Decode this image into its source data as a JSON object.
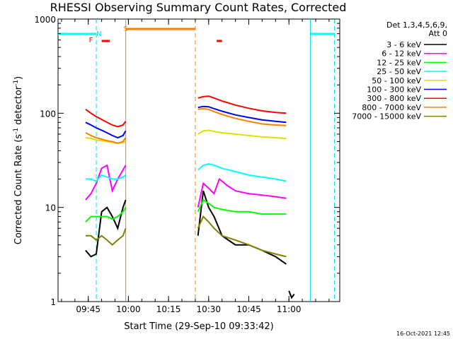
{
  "chart_data": {
    "type": "line",
    "title": "RHESSI Observing Summary Count Rates, Corrected",
    "xlabel": "Start Time (29-Sep-10 09:33:42)",
    "ylabel": "Corrected Count Rate (s⁻¹ detector⁻¹)",
    "ylabel_main": "Corrected Count Rate (s",
    "ylabel_mid": " detector",
    "ylabel_end": ")",
    "ylabel_sup": "-1",
    "yscale": "log",
    "ylim": [
      1,
      1000
    ],
    "xlim": [
      "09:33:42",
      "11:19:00"
    ],
    "x_ticks": [
      "09:45",
      "10:00",
      "10:15",
      "10:30",
      "10:45",
      "11:00"
    ],
    "y_ticks": [
      "1",
      "10",
      "100",
      "1000"
    ],
    "legend_header": [
      "Det 1,3,4,5,6,9,",
      "Att 0"
    ],
    "legend_position": "right",
    "timestamp": "16-Oct-2021 12:45",
    "flags": [
      {
        "label": "S",
        "color": "#ff8000",
        "time": "09:59",
        "start": "09:59",
        "end": "10:25"
      },
      {
        "label": "F",
        "color": "#ff0000",
        "time": "09:46",
        "start": "09:50",
        "end": "09:53"
      },
      {
        "label": "N",
        "color": "#00e0e0",
        "time": "09:49",
        "start": "",
        "end": ""
      },
      {
        "label": "",
        "color": "#ff0000",
        "time": "",
        "start": "10:33",
        "end": "10:35"
      },
      {
        "label": "",
        "color": "#00ffff",
        "time": "",
        "start": "09:33:42",
        "end": "09:48"
      },
      {
        "label": "",
        "color": "#00ffff",
        "time": "",
        "start": "11:08",
        "end": "11:17"
      }
    ],
    "vlines": [
      {
        "time": "09:48",
        "color": "#00e0e0",
        "style": "dashed"
      },
      {
        "time": "09:59",
        "color": "#ff8000",
        "style": "solid"
      },
      {
        "time": "10:25",
        "color": "#ff8000",
        "style": "dashed"
      },
      {
        "time": "11:08",
        "color": "#00e0e0",
        "style": "solid"
      },
      {
        "time": "11:17",
        "color": "#00e0e0",
        "style": "dashed"
      }
    ],
    "series": [
      {
        "name": "3 - 6 keV",
        "color": "#000000",
        "segments": [
          {
            "x": [
              "09:44",
              "09:46",
              "09:48",
              "09:50",
              "09:52",
              "09:54",
              "09:56",
              "09:58",
              "09:59"
            ],
            "y": [
              3.5,
              3,
              3.2,
              9,
              10,
              8,
              6,
              10,
              12
            ]
          },
          {
            "x": [
              "10:26",
              "10:28",
              "10:30",
              "10:32",
              "10:35",
              "10:40",
              "10:45",
              "10:50",
              "10:55",
              "10:59"
            ],
            "y": [
              5,
              15,
              10,
              8,
              5,
              4,
              4,
              3.5,
              3,
              2.5
            ]
          },
          {
            "x": [
              "11:00",
              "11:01",
              "11:02"
            ],
            "y": [
              1.3,
              1.1,
              1.2
            ]
          }
        ]
      },
      {
        "name": "6 - 12 keV",
        "color": "#ff00ff",
        "segments": [
          {
            "x": [
              "09:44",
              "09:46",
              "09:48",
              "09:50",
              "09:52",
              "09:54",
              "09:56",
              "09:58",
              "09:59"
            ],
            "y": [
              12,
              14,
              18,
              26,
              28,
              15,
              20,
              25,
              28
            ]
          },
          {
            "x": [
              "10:26",
              "10:28",
              "10:30",
              "10:32",
              "10:34",
              "10:37",
              "10:40",
              "10:45",
              "10:50",
              "10:55",
              "10:59"
            ],
            "y": [
              10,
              18,
              16,
              14,
              20,
              17,
              15,
              14,
              13.5,
              13,
              12.5
            ]
          }
        ]
      },
      {
        "name": "12 - 25 keV",
        "color": "#00ff00",
        "segments": [
          {
            "x": [
              "09:44",
              "09:46",
              "09:48",
              "09:50",
              "09:52",
              "09:54",
              "09:56",
              "09:58",
              "09:59"
            ],
            "y": [
              7,
              8,
              8,
              8,
              8,
              7.5,
              8,
              9,
              10
            ]
          },
          {
            "x": [
              "10:26",
              "10:28",
              "10:30",
              "10:32",
              "10:35",
              "10:40",
              "10:45",
              "10:50",
              "10:55",
              "10:59"
            ],
            "y": [
              9,
              12,
              11,
              10,
              9.5,
              9,
              9,
              8.5,
              8.5,
              8.5
            ]
          }
        ]
      },
      {
        "name": "25 - 50 keV",
        "color": "#00ffff",
        "segments": [
          {
            "x": [
              "09:44",
              "09:46",
              "09:48",
              "09:50",
              "09:52",
              "09:54",
              "09:56",
              "09:58",
              "09:59"
            ],
            "y": [
              20,
              20,
              19,
              22,
              21,
              20,
              20,
              21,
              22
            ]
          },
          {
            "x": [
              "10:26",
              "10:28",
              "10:30",
              "10:32",
              "10:35",
              "10:40",
              "10:45",
              "10:50",
              "10:55",
              "10:59"
            ],
            "y": [
              25,
              28,
              29,
              28,
              26,
              24,
              22,
              21,
              20,
              19
            ]
          }
        ]
      },
      {
        "name": "50 - 100 keV",
        "color": "#e0e000",
        "segments": [
          {
            "x": [
              "09:44",
              "09:46",
              "09:48",
              "09:50",
              "09:52",
              "09:54",
              "09:56",
              "09:58",
              "09:59"
            ],
            "y": [
              55,
              54,
              52,
              51,
              50,
              49,
              48,
              49,
              50
            ]
          },
          {
            "x": [
              "10:26",
              "10:28",
              "10:30",
              "10:32",
              "10:35",
              "10:40",
              "10:45",
              "10:50",
              "10:55",
              "10:59"
            ],
            "y": [
              60,
              65,
              66,
              64,
              62,
              60,
              58,
              56,
              55,
              54
            ]
          }
        ]
      },
      {
        "name": "100 - 300 keV",
        "color": "#0000ff",
        "segments": [
          {
            "x": [
              "09:44",
              "09:46",
              "09:48",
              "09:50",
              "09:52",
              "09:54",
              "09:56",
              "09:58",
              "09:59"
            ],
            "y": [
              80,
              75,
              70,
              66,
              62,
              58,
              55,
              58,
              65
            ]
          },
          {
            "x": [
              "10:26",
              "10:28",
              "10:30",
              "10:32",
              "10:35",
              "10:40",
              "10:45",
              "10:50",
              "10:55",
              "10:59"
            ],
            "y": [
              115,
              118,
              117,
              112,
              105,
              96,
              90,
              85,
              82,
              80
            ]
          }
        ]
      },
      {
        "name": "300 - 800 keV",
        "color": "#ff0000",
        "segments": [
          {
            "x": [
              "09:44",
              "09:46",
              "09:48",
              "09:50",
              "09:52",
              "09:54",
              "09:56",
              "09:58",
              "09:59"
            ],
            "y": [
              110,
              100,
              92,
              86,
              80,
              75,
              72,
              75,
              82
            ]
          },
          {
            "x": [
              "10:26",
              "10:28",
              "10:30",
              "10:32",
              "10:35",
              "10:40",
              "10:45",
              "10:50",
              "10:55",
              "10:59"
            ],
            "y": [
              145,
              150,
              152,
              145,
              135,
              122,
              113,
              106,
              102,
              100
            ]
          }
        ]
      },
      {
        "name": "800 - 7000 keV",
        "color": "#ff8000",
        "segments": [
          {
            "x": [
              "09:44",
              "09:46",
              "09:48",
              "09:50",
              "09:52",
              "09:54",
              "09:56",
              "09:58",
              "09:59"
            ],
            "y": [
              62,
              58,
              55,
              53,
              51,
              50,
              48,
              50,
              55
            ]
          },
          {
            "x": [
              "10:26",
              "10:28",
              "10:30",
              "10:32",
              "10:35",
              "10:40",
              "10:45",
              "10:50",
              "10:55",
              "10:59"
            ],
            "y": [
              110,
              112,
              110,
              104,
              97,
              88,
              82,
              77,
              75,
              74
            ]
          }
        ]
      },
      {
        "name": "7000 - 15000 keV",
        "color": "#808000",
        "segments": [
          {
            "x": [
              "09:44",
              "09:46",
              "09:48",
              "09:50",
              "09:52",
              "09:54",
              "09:56",
              "09:58",
              "09:59"
            ],
            "y": [
              5,
              5,
              4.5,
              5,
              4.5,
              4,
              4.5,
              5,
              6
            ]
          },
          {
            "x": [
              "10:26",
              "10:28",
              "10:30",
              "10:32",
              "10:35",
              "10:40",
              "10:45",
              "10:50",
              "10:55",
              "10:59"
            ],
            "y": [
              6,
              8,
              7,
              6,
              5,
              4.5,
              4,
              3.5,
              3.2,
              3
            ]
          }
        ]
      }
    ]
  }
}
